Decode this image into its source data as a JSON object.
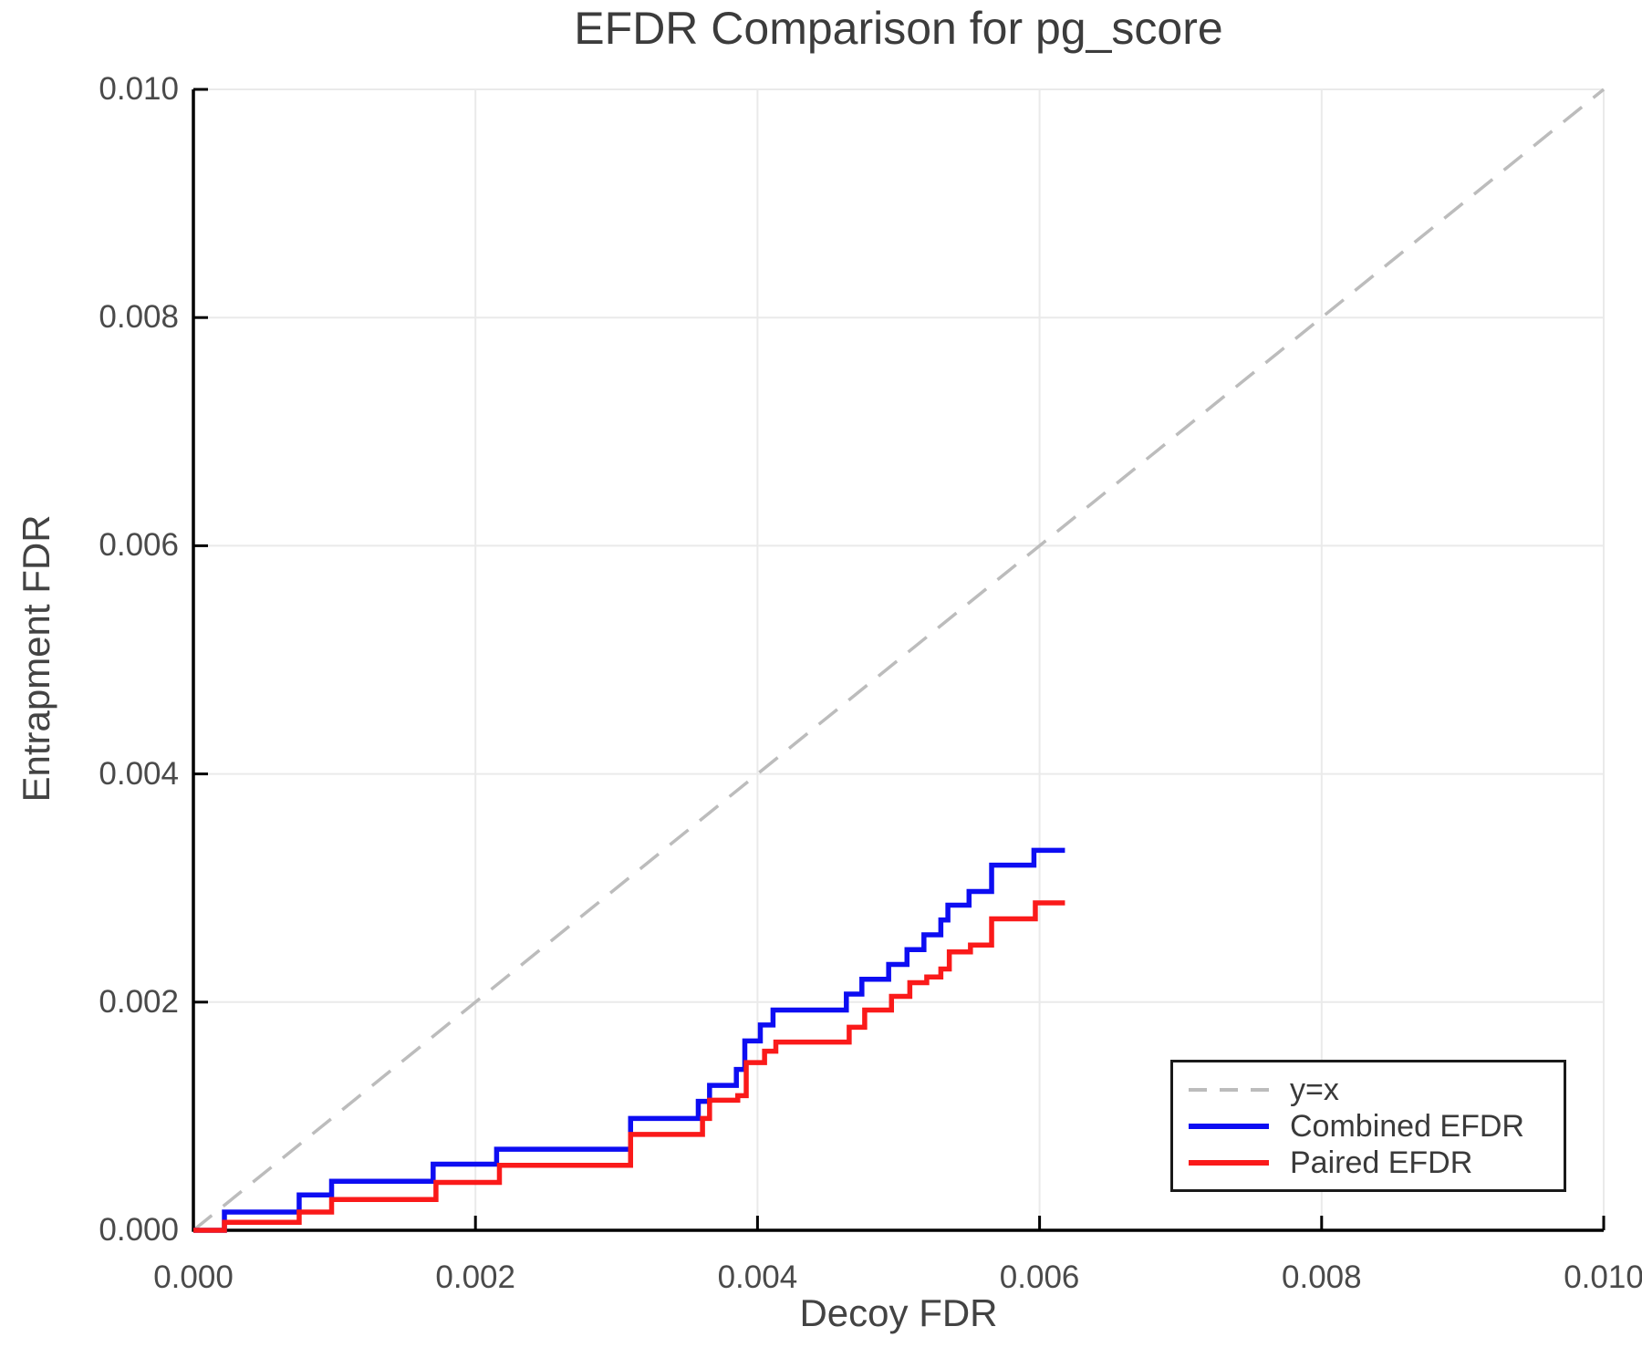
{
  "chart_data": {
    "type": "line",
    "title": "EFDR Comparison for pg_score",
    "xlabel": "Decoy FDR",
    "ylabel": "Entrapment FDR",
    "xlim": [
      0.0,
      0.01
    ],
    "ylim": [
      0.0,
      0.01
    ],
    "grid": true,
    "x_ticks": [
      0.0,
      0.002,
      0.004,
      0.006,
      0.008,
      0.01
    ],
    "y_ticks": [
      0.0,
      0.002,
      0.004,
      0.006,
      0.008,
      0.01
    ],
    "x_tick_labels": [
      "0.000",
      "0.002",
      "0.004",
      "0.006",
      "0.008",
      "0.010"
    ],
    "y_tick_labels": [
      "0.000",
      "0.002",
      "0.004",
      "0.006",
      "0.008",
      "0.010"
    ],
    "colors": {
      "identity_line": "#bcbcbc",
      "combined": "#0d0df2",
      "paired": "#fa1a1a",
      "grid": "#eaeaea",
      "spine": "#000000"
    },
    "legend": {
      "position": "lower right",
      "entries": [
        {
          "label": "y=x"
        },
        {
          "label": "Combined EFDR"
        },
        {
          "label": "Paired EFDR"
        }
      ]
    },
    "series": [
      {
        "name": "y=x",
        "style": "dashed",
        "color": "#bcbcbc",
        "line": [
          [
            0.0,
            0.0
          ],
          [
            0.01,
            0.01
          ]
        ]
      },
      {
        "name": "Combined EFDR",
        "style": "step",
        "color": "#0d0df2",
        "start": [
          0.0,
          0.0
        ],
        "steps": [
          [
            0.00022,
            0.00016
          ],
          [
            0.00075,
            0.00031
          ],
          [
            0.00098,
            0.00043
          ],
          [
            0.0017,
            0.00058
          ],
          [
            0.00215,
            0.00071
          ],
          [
            0.0031,
            0.00098
          ],
          [
            0.00358,
            0.00113
          ],
          [
            0.00366,
            0.00127
          ],
          [
            0.00385,
            0.00141
          ],
          [
            0.00391,
            0.00166
          ],
          [
            0.00402,
            0.0018
          ],
          [
            0.00411,
            0.00193
          ],
          [
            0.00463,
            0.00207
          ],
          [
            0.00474,
            0.0022
          ],
          [
            0.00493,
            0.00233
          ],
          [
            0.00506,
            0.00246
          ],
          [
            0.00518,
            0.00259
          ],
          [
            0.0053,
            0.00272
          ],
          [
            0.00535,
            0.00285
          ],
          [
            0.0055,
            0.00297
          ],
          [
            0.00566,
            0.0032
          ],
          [
            0.00596,
            0.00333
          ]
        ],
        "end_x": 0.00618
      },
      {
        "name": "Paired EFDR",
        "style": "step",
        "color": "#fa1a1a",
        "start": [
          0.0,
          0.0
        ],
        "steps": [
          [
            0.00022,
            7e-05
          ],
          [
            0.00075,
            0.00016
          ],
          [
            0.00098,
            0.00027
          ],
          [
            0.00172,
            0.00042
          ],
          [
            0.00217,
            0.00057
          ],
          [
            0.0031,
            0.00084
          ],
          [
            0.00361,
            0.00098
          ],
          [
            0.00366,
            0.00114
          ],
          [
            0.00386,
            0.00118
          ],
          [
            0.00392,
            0.00147
          ],
          [
            0.00405,
            0.00157
          ],
          [
            0.00413,
            0.00165
          ],
          [
            0.00465,
            0.00178
          ],
          [
            0.00476,
            0.00193
          ],
          [
            0.00495,
            0.00205
          ],
          [
            0.00508,
            0.00217
          ],
          [
            0.0052,
            0.00222
          ],
          [
            0.0053,
            0.00229
          ],
          [
            0.00536,
            0.00244
          ],
          [
            0.00551,
            0.0025
          ],
          [
            0.00566,
            0.00273
          ],
          [
            0.00597,
            0.00287
          ]
        ],
        "end_x": 0.00618
      }
    ]
  }
}
